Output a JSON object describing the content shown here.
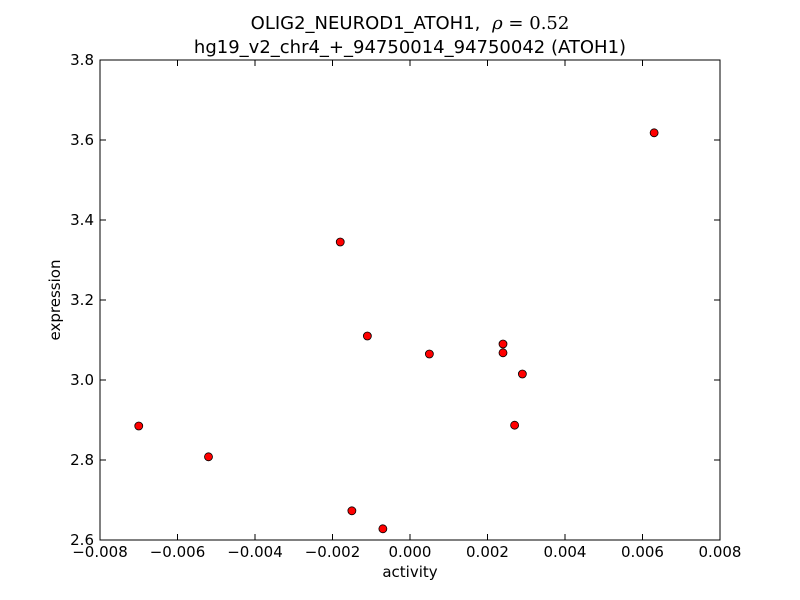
{
  "chart_data": {
    "type": "scatter",
    "title_line1": "OLIG2_NEUROD1_ATOH1,",
    "title_rho_symbol": "ρ",
    "title_rho_eq": "=",
    "title_rho_value": "0.52",
    "title_line2": "hg19_v2_chr4_+_94750014_94750042 (ATOH1)",
    "xlabel": "activity",
    "ylabel": "expression",
    "xlim": [
      -0.008,
      0.008
    ],
    "ylim": [
      2.6,
      3.8
    ],
    "xticks": [
      -0.008,
      -0.006,
      -0.004,
      -0.002,
      0.0,
      0.002,
      0.004,
      0.006,
      0.008
    ],
    "xtick_labels": [
      "−0.008",
      "−0.006",
      "−0.004",
      "−0.002",
      "0.000",
      "0.002",
      "0.004",
      "0.006",
      "0.008"
    ],
    "yticks": [
      2.6,
      2.8,
      3.0,
      3.2,
      3.4,
      3.6,
      3.8
    ],
    "ytick_labels": [
      "2.6",
      "2.8",
      "3.0",
      "3.2",
      "3.4",
      "3.6",
      "3.8"
    ],
    "grid": false,
    "marker_color": "#ff0000",
    "marker_edge_color": "#000000",
    "points": [
      {
        "x": -0.007,
        "y": 2.885
      },
      {
        "x": -0.0052,
        "y": 2.808
      },
      {
        "x": -0.0018,
        "y": 3.345
      },
      {
        "x": -0.0015,
        "y": 2.673
      },
      {
        "x": -0.0011,
        "y": 3.11
      },
      {
        "x": -0.0007,
        "y": 2.628
      },
      {
        "x": 0.0005,
        "y": 3.065
      },
      {
        "x": 0.0024,
        "y": 3.09
      },
      {
        "x": 0.0024,
        "y": 3.068
      },
      {
        "x": 0.0027,
        "y": 2.887
      },
      {
        "x": 0.0029,
        "y": 3.015
      },
      {
        "x": 0.0063,
        "y": 3.618
      }
    ]
  }
}
